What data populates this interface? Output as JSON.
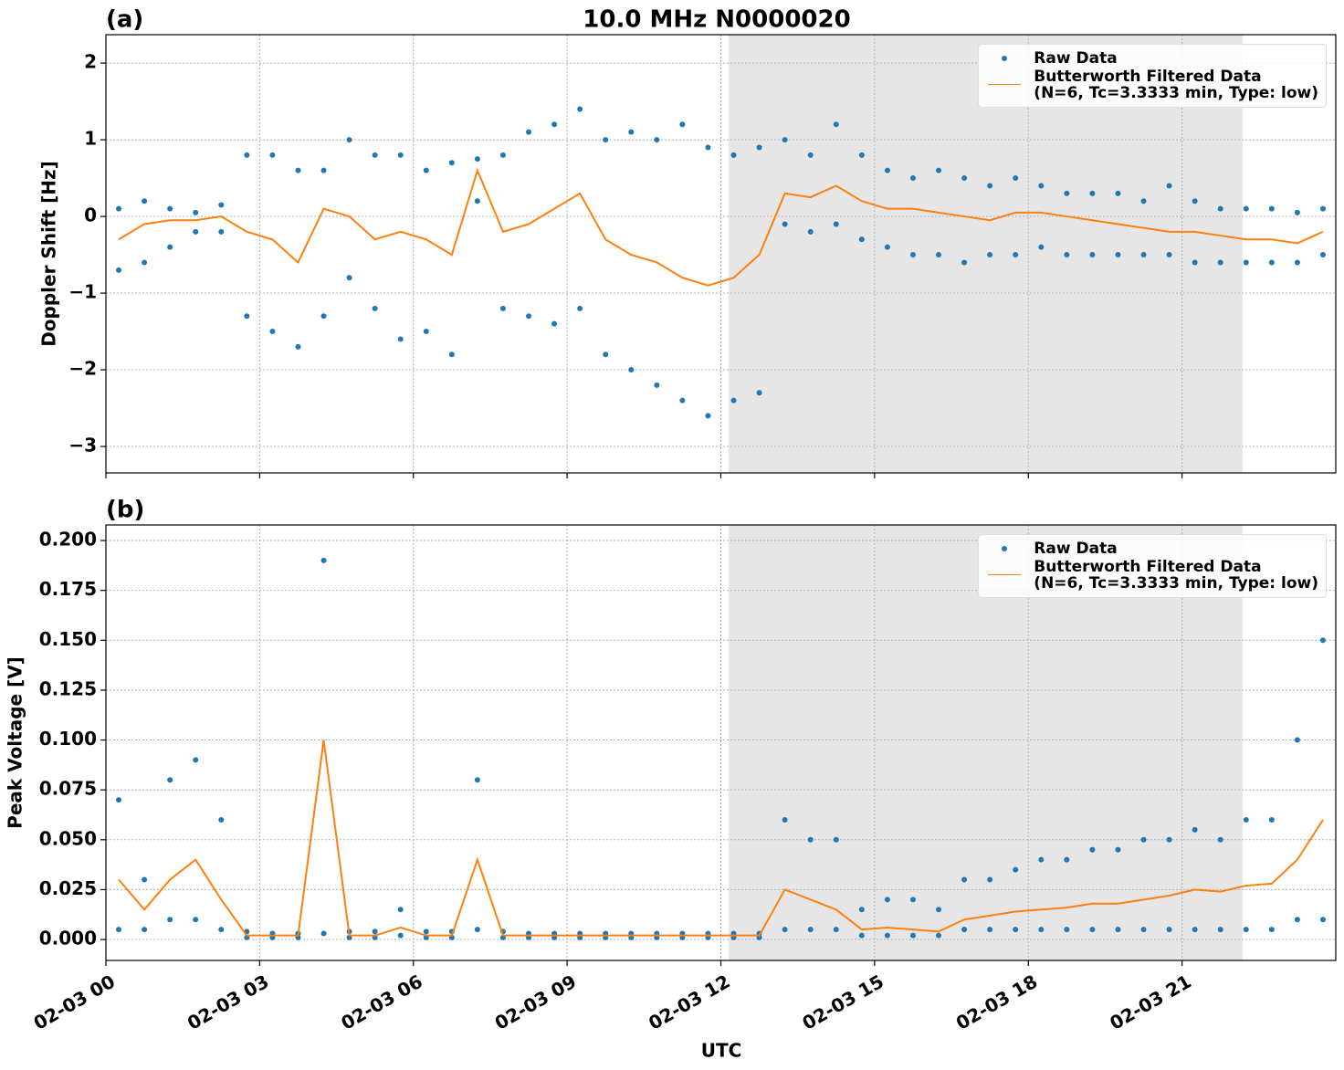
{
  "chart_data": {
    "type": "scatter",
    "title": "10.0 MHz N0000020",
    "xlabel": "UTC",
    "xlim": [
      0,
      24
    ],
    "xticks": [
      {
        "value": 0,
        "label": "02-03 00"
      },
      {
        "value": 3,
        "label": "02-03 03"
      },
      {
        "value": 6,
        "label": "02-03 06"
      },
      {
        "value": 9,
        "label": "02-03 09"
      },
      {
        "value": 12,
        "label": "02-03 12"
      },
      {
        "value": 15,
        "label": "02-03 15"
      },
      {
        "value": 18,
        "label": "02-03 18"
      },
      {
        "value": 21,
        "label": "02-03 21"
      }
    ],
    "shaded_span": [
      12.15,
      22.18
    ],
    "grid": true,
    "panels": [
      {
        "label": "(a)",
        "ylabel": "Doppler Shift [Hz]",
        "legend": "upper right",
        "ylim": [
          -3.345,
          2.37
        ],
        "yticks": [
          {
            "value": -3,
            "label": "−3"
          },
          {
            "value": -2,
            "label": "−2"
          },
          {
            "value": -1,
            "label": "−1"
          },
          0,
          1,
          2
        ],
        "series": [
          {
            "name": "Raw Data",
            "style": "markers",
            "color": "#1f77b4",
            "x": [
              0.25,
              0.25,
              0.75,
              0.75,
              1.25,
              1.25,
              1.75,
              1.75,
              2.25,
              2.25,
              2.75,
              2.75,
              3.25,
              3.25,
              3.75,
              3.75,
              4.25,
              4.25,
              4.75,
              4.75,
              5.25,
              5.25,
              5.75,
              5.75,
              6.25,
              6.25,
              6.75,
              6.75,
              7.25,
              7.25,
              7.75,
              7.75,
              8.25,
              8.25,
              8.75,
              8.75,
              9.25,
              9.25,
              9.75,
              9.75,
              10.25,
              10.25,
              10.75,
              10.75,
              11.25,
              11.25,
              11.75,
              11.75,
              12.25,
              12.25,
              12.75,
              12.75,
              13.25,
              13.25,
              13.75,
              13.75,
              14.25,
              14.25,
              14.75,
              14.75,
              15.25,
              15.25,
              15.75,
              15.75,
              16.25,
              16.25,
              16.75,
              16.75,
              17.25,
              17.25,
              17.75,
              17.75,
              18.25,
              18.25,
              18.75,
              18.75,
              19.25,
              19.25,
              19.75,
              19.75,
              20.25,
              20.25,
              20.75,
              20.75,
              21.25,
              21.25,
              21.75,
              21.75,
              22.25,
              22.25,
              22.75,
              22.75,
              23.25,
              23.25,
              23.75,
              23.75
            ],
            "values": [
              -0.7,
              0.1,
              -0.6,
              0.2,
              -0.4,
              0.1,
              -0.2,
              0.05,
              -0.2,
              0.15,
              -1.3,
              0.8,
              -1.5,
              0.8,
              -1.7,
              0.6,
              -1.3,
              0.6,
              -0.8,
              1.0,
              -1.2,
              0.8,
              -1.6,
              0.8,
              -1.5,
              0.6,
              -1.8,
              0.7,
              0.2,
              0.75,
              -1.2,
              0.8,
              -1.3,
              1.1,
              -1.4,
              1.2,
              -1.2,
              1.4,
              -1.8,
              1.0,
              -2.0,
              1.1,
              -2.2,
              1.0,
              -2.4,
              1.2,
              -2.6,
              0.9,
              -2.4,
              0.8,
              -2.3,
              0.9,
              -0.1,
              1.0,
              -0.2,
              0.8,
              -0.1,
              1.2,
              -0.3,
              0.8,
              -0.4,
              0.6,
              -0.5,
              0.5,
              -0.5,
              0.6,
              -0.6,
              0.5,
              -0.5,
              0.4,
              -0.5,
              0.5,
              -0.4,
              0.4,
              -0.5,
              0.3,
              -0.5,
              0.3,
              -0.5,
              0.3,
              -0.5,
              0.2,
              -0.5,
              0.4,
              -0.6,
              0.2,
              -0.6,
              0.1,
              -0.6,
              0.1,
              -0.6,
              0.1,
              -0.6,
              0.05,
              -0.5,
              0.1
            ]
          },
          {
            "name": "Butterworth Filtered Data\n(N=6, Tc=3.3333 min, Type: low)",
            "style": "line",
            "color": "#ff7f0e",
            "x": [
              0.25,
              0.75,
              1.25,
              1.75,
              2.25,
              2.75,
              3.25,
              3.75,
              4.25,
              4.75,
              5.25,
              5.75,
              6.25,
              6.75,
              7.25,
              7.75,
              8.25,
              8.75,
              9.25,
              9.75,
              10.25,
              10.75,
              11.25,
              11.75,
              12.25,
              12.75,
              13.25,
              13.75,
              14.25,
              14.75,
              15.25,
              15.75,
              16.25,
              16.75,
              17.25,
              17.75,
              18.25,
              18.75,
              19.25,
              19.75,
              20.25,
              20.75,
              21.25,
              21.75,
              22.25,
              22.75,
              23.25,
              23.75
            ],
            "values": [
              -0.3,
              -0.1,
              -0.05,
              -0.05,
              0.0,
              -0.2,
              -0.3,
              -0.6,
              0.1,
              0.0,
              -0.3,
              -0.2,
              -0.3,
              -0.5,
              0.6,
              -0.2,
              -0.1,
              0.1,
              0.3,
              -0.3,
              -0.5,
              -0.6,
              -0.8,
              -0.9,
              -0.8,
              -0.5,
              0.3,
              0.25,
              0.4,
              0.2,
              0.1,
              0.1,
              0.05,
              0.0,
              -0.05,
              0.05,
              0.05,
              0.0,
              -0.05,
              -0.1,
              -0.15,
              -0.2,
              -0.2,
              -0.25,
              -0.3,
              -0.3,
              -0.35,
              -0.2
            ]
          }
        ]
      },
      {
        "label": "(b)",
        "ylabel": "Peak Voltage [V]",
        "legend": "upper right",
        "ylim": [
          -0.0105,
          0.2078
        ],
        "yticks": [
          {
            "value": 0,
            "label": "0.000"
          },
          {
            "value": 0.025,
            "label": "0.025"
          },
          {
            "value": 0.05,
            "label": "0.050"
          },
          {
            "value": 0.075,
            "label": "0.075"
          },
          {
            "value": 0.1,
            "label": "0.100"
          },
          {
            "value": 0.125,
            "label": "0.125"
          },
          {
            "value": 0.15,
            "label": "0.150"
          },
          {
            "value": 0.175,
            "label": "0.175"
          },
          {
            "value": 0.2,
            "label": "0.200"
          }
        ],
        "series": [
          {
            "name": "Raw Data",
            "style": "markers",
            "color": "#1f77b4",
            "x": [
              0.25,
              0.25,
              0.75,
              0.75,
              1.25,
              1.25,
              1.75,
              1.75,
              2.25,
              2.25,
              2.75,
              2.75,
              3.25,
              3.25,
              3.75,
              3.75,
              4.25,
              4.25,
              4.75,
              4.75,
              5.25,
              5.25,
              5.75,
              5.75,
              6.25,
              6.25,
              6.75,
              6.75,
              7.25,
              7.25,
              7.75,
              7.75,
              8.25,
              8.25,
              8.75,
              8.75,
              9.25,
              9.25,
              9.75,
              9.75,
              10.25,
              10.25,
              10.75,
              10.75,
              11.25,
              11.25,
              11.75,
              11.75,
              12.25,
              12.25,
              12.75,
              12.75,
              13.25,
              13.25,
              13.75,
              13.75,
              14.25,
              14.25,
              14.75,
              14.75,
              15.25,
              15.25,
              15.75,
              15.75,
              16.25,
              16.25,
              16.75,
              16.75,
              17.25,
              17.25,
              17.75,
              17.75,
              18.25,
              18.25,
              18.75,
              18.75,
              19.25,
              19.25,
              19.75,
              19.75,
              20.25,
              20.25,
              20.75,
              20.75,
              21.25,
              21.25,
              21.75,
              21.75,
              22.25,
              22.25,
              22.75,
              22.75,
              23.25,
              23.25,
              23.75,
              23.75
            ],
            "values": [
              0.005,
              0.07,
              0.005,
              0.03,
              0.01,
              0.08,
              0.01,
              0.09,
              0.005,
              0.06,
              0.001,
              0.004,
              0.001,
              0.003,
              0.001,
              0.003,
              0.003,
              0.19,
              0.001,
              0.004,
              0.001,
              0.004,
              0.002,
              0.015,
              0.001,
              0.004,
              0.001,
              0.004,
              0.005,
              0.08,
              0.001,
              0.004,
              0.001,
              0.003,
              0.001,
              0.003,
              0.001,
              0.003,
              0.001,
              0.003,
              0.001,
              0.003,
              0.001,
              0.003,
              0.001,
              0.003,
              0.001,
              0.003,
              0.001,
              0.003,
              0.001,
              0.003,
              0.005,
              0.06,
              0.005,
              0.05,
              0.005,
              0.05,
              0.002,
              0.015,
              0.002,
              0.02,
              0.002,
              0.02,
              0.002,
              0.015,
              0.005,
              0.03,
              0.005,
              0.03,
              0.005,
              0.035,
              0.005,
              0.04,
              0.005,
              0.04,
              0.005,
              0.045,
              0.005,
              0.045,
              0.005,
              0.05,
              0.005,
              0.05,
              0.005,
              0.055,
              0.005,
              0.05,
              0.005,
              0.06,
              0.005,
              0.06,
              0.01,
              0.1,
              0.01,
              0.15
            ]
          },
          {
            "name": "Butterworth Filtered Data\n(N=6, Tc=3.3333 min, Type: low)",
            "style": "line",
            "color": "#ff7f0e",
            "x": [
              0.25,
              0.75,
              1.25,
              1.75,
              2.25,
              2.75,
              3.25,
              3.75,
              4.25,
              4.75,
              5.25,
              5.75,
              6.25,
              6.75,
              7.25,
              7.75,
              8.25,
              8.75,
              9.25,
              9.75,
              10.25,
              10.75,
              11.25,
              11.75,
              12.25,
              12.75,
              13.25,
              13.75,
              14.25,
              14.75,
              15.25,
              15.75,
              16.25,
              16.75,
              17.25,
              17.75,
              18.25,
              18.75,
              19.25,
              19.75,
              20.25,
              20.75,
              21.25,
              21.75,
              22.25,
              22.75,
              23.25,
              23.75
            ],
            "values": [
              0.03,
              0.015,
              0.03,
              0.04,
              0.02,
              0.002,
              0.002,
              0.002,
              0.1,
              0.002,
              0.002,
              0.006,
              0.002,
              0.002,
              0.04,
              0.002,
              0.002,
              0.002,
              0.002,
              0.002,
              0.002,
              0.002,
              0.002,
              0.002,
              0.002,
              0.002,
              0.025,
              0.02,
              0.015,
              0.005,
              0.006,
              0.005,
              0.004,
              0.01,
              0.012,
              0.014,
              0.015,
              0.016,
              0.018,
              0.018,
              0.02,
              0.022,
              0.025,
              0.024,
              0.027,
              0.028,
              0.04,
              0.06
            ]
          }
        ]
      }
    ]
  }
}
